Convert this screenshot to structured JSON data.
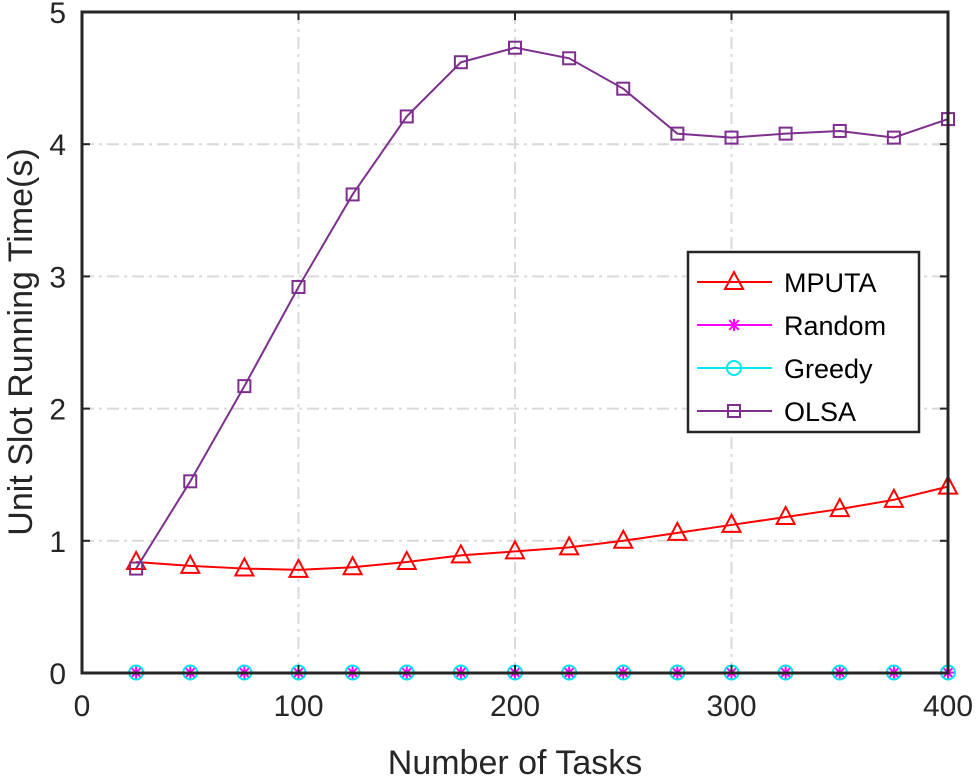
{
  "chart_data": {
    "type": "line",
    "xlabel": "Number of Tasks",
    "ylabel": "Unit Slot Running Time(s)",
    "xlim": [
      0,
      400
    ],
    "ylim": [
      0,
      5
    ],
    "xticks": [
      0,
      100,
      200,
      300,
      400
    ],
    "yticks": [
      0,
      1,
      2,
      3,
      4,
      5
    ],
    "grid": true,
    "legend_position": "right",
    "x": [
      25,
      50,
      75,
      100,
      125,
      150,
      175,
      200,
      225,
      250,
      275,
      300,
      325,
      350,
      375,
      400
    ],
    "series": [
      {
        "name": "MPUTA",
        "color": "#ff0000",
        "marker": "triangle",
        "values": [
          0.84,
          0.81,
          0.79,
          0.78,
          0.8,
          0.84,
          0.89,
          0.92,
          0.95,
          1.0,
          1.06,
          1.12,
          1.18,
          1.24,
          1.31,
          1.41
        ]
      },
      {
        "name": "Random",
        "color": "#ff00ff",
        "marker": "asterisk",
        "values": [
          0.003,
          0.003,
          0.003,
          0.003,
          0.003,
          0.003,
          0.003,
          0.003,
          0.003,
          0.003,
          0.003,
          0.003,
          0.003,
          0.003,
          0.003,
          0.003
        ]
      },
      {
        "name": "Greedy",
        "color": "#00e5ee",
        "marker": "circle",
        "values": [
          0.004,
          0.004,
          0.004,
          0.004,
          0.004,
          0.004,
          0.004,
          0.004,
          0.004,
          0.004,
          0.004,
          0.004,
          0.004,
          0.004,
          0.004,
          0.004
        ]
      },
      {
        "name": "OLSA",
        "color": "#7e2f8e",
        "marker": "square",
        "values": [
          0.79,
          1.45,
          2.17,
          2.92,
          3.62,
          4.21,
          4.62,
          4.73,
          4.65,
          4.42,
          4.08,
          4.05,
          4.08,
          4.1,
          4.05,
          4.19
        ]
      }
    ]
  }
}
